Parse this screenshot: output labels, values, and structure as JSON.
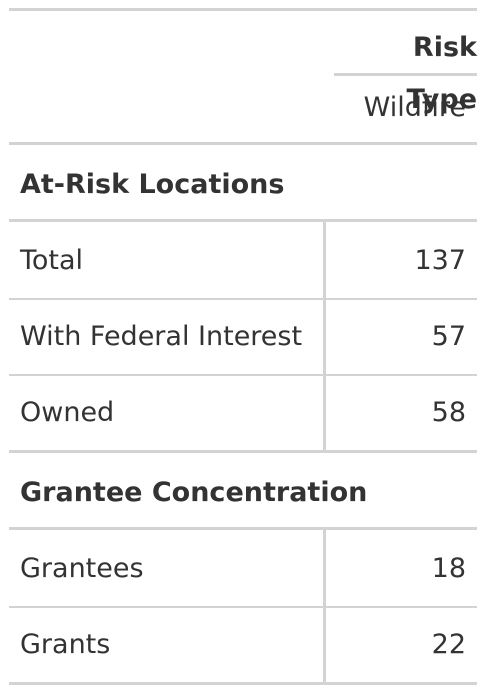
{
  "table": {
    "spanner_label": "Risk Type",
    "column_label": "Wildfire",
    "groups": [
      {
        "label": "At-Risk Locations",
        "rows": [
          {
            "label": "Total",
            "value": "137"
          },
          {
            "label": "With Federal Interest",
            "value": "57"
          },
          {
            "label": "Owned",
            "value": "58"
          }
        ]
      },
      {
        "label": "Grantee Concentration",
        "rows": [
          {
            "label": "Grantees",
            "value": "18"
          },
          {
            "label": "Grants",
            "value": "22"
          }
        ]
      }
    ]
  }
}
